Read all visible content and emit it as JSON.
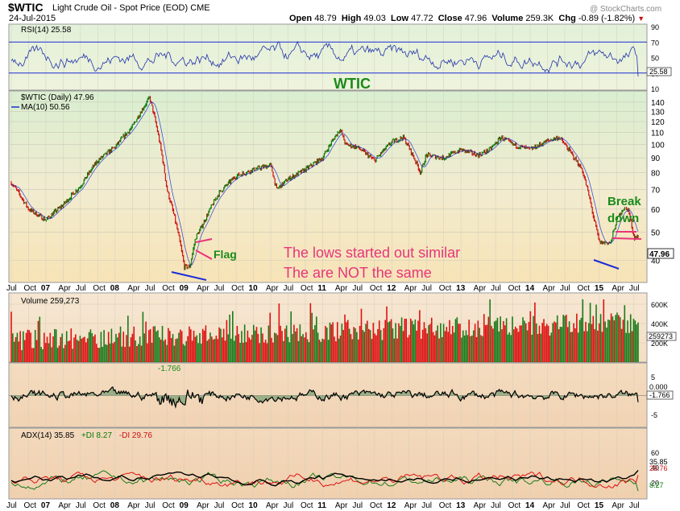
{
  "header": {
    "symbol": "$WTIC",
    "name": "Light Crude Oil - Spot Price (EOD)",
    "exchange": "CME",
    "date": "24-Jul-2015",
    "watermark": "@ StockCharts.com",
    "ohlc": {
      "open_label": "Open",
      "open": "48.79",
      "high_label": "High",
      "high": "49.03",
      "low_label": "Low",
      "low": "47.72",
      "close_label": "Close",
      "close": "47.96",
      "volume_label": "Volume",
      "volume": "259.3K",
      "chg_label": "Chg",
      "chg": "-0.89 (-1.82%)"
    }
  },
  "colors": {
    "up": "#0a7a0a",
    "down": "#cc1111",
    "rsi": "#2233aa",
    "annotation_pink": "#e8357a",
    "annotation_green": "#1a8a1a",
    "trendline": "#1a2bd6",
    "ma": "#1a2bd6"
  },
  "chart_data": [
    {
      "type": "line",
      "panel": "rsi",
      "legend": "RSI(14) 25.58",
      "current_value_label": "25.58",
      "y_ticks": [
        "90",
        "70",
        "50",
        "30",
        "10"
      ],
      "y_range": [
        10,
        90
      ],
      "guide_lines": [
        70,
        30
      ],
      "overlay_label": "WTIC"
    },
    {
      "type": "line",
      "panel": "price",
      "legend_price": "$WTIC (Daily) 47.96",
      "legend_ma": "MA(10) 50.56",
      "current_value_label": "47.96",
      "y_ticks": [
        "140",
        "130",
        "120",
        "110",
        "100",
        "90",
        "80",
        "70",
        "60",
        "50",
        "40"
      ],
      "y_scale": "log",
      "y_range": [
        34,
        150
      ],
      "x": [
        "2006-07",
        "2006-10",
        "2007-01",
        "2007-04",
        "2007-07",
        "2007-10",
        "2008-01",
        "2008-04",
        "2008-07",
        "2008-10",
        "2009-01",
        "2009-02",
        "2009-03",
        "2009-04",
        "2009-07",
        "2009-10",
        "2010-01",
        "2010-04",
        "2010-05",
        "2010-07",
        "2010-10",
        "2011-01",
        "2011-04",
        "2011-05",
        "2011-07",
        "2011-10",
        "2012-01",
        "2012-03",
        "2012-06",
        "2012-07",
        "2012-10",
        "2013-01",
        "2013-04",
        "2013-06",
        "2013-08",
        "2013-10",
        "2014-01",
        "2014-04",
        "2014-06",
        "2014-07",
        "2014-10",
        "2014-12",
        "2015-01",
        "2015-03",
        "2015-04",
        "2015-05",
        "2015-06",
        "2015-07"
      ],
      "y": [
        74,
        60,
        55,
        62,
        72,
        88,
        98,
        115,
        145,
        70,
        38,
        38,
        48,
        52,
        68,
        78,
        82,
        85,
        70,
        76,
        82,
        90,
        113,
        100,
        98,
        88,
        102,
        106,
        80,
        92,
        90,
        96,
        92,
        96,
        106,
        100,
        96,
        103,
        106,
        100,
        82,
        56,
        46,
        46,
        55,
        60,
        60,
        48
      ],
      "x_ticks": [
        "Jul",
        "Oct",
        "07",
        "Apr",
        "Jul",
        "Oct",
        "08",
        "Apr",
        "Jul",
        "Oct",
        "09",
        "Apr",
        "Jul",
        "Oct",
        "10",
        "Apr",
        "Jul",
        "Oct",
        "11",
        "Apr",
        "Jul",
        "Oct",
        "12",
        "Apr",
        "Jul",
        "Oct",
        "13",
        "Apr",
        "Jul",
        "Oct",
        "14",
        "Apr",
        "Jul",
        "Oct",
        "15",
        "Apr",
        "Jul"
      ],
      "annotations": [
        "Flag",
        "Break",
        "down",
        "The lows started out similar",
        "The are NOT the same"
      ]
    },
    {
      "type": "bar",
      "panel": "volume",
      "legend": "Volume 259,273",
      "current_value_label": "259273",
      "y_ticks": [
        "600K",
        "400K",
        "200K"
      ],
      "y_range": [
        0,
        700000
      ]
    },
    {
      "type": "line",
      "panel": "oscillator",
      "legend": "-1.766",
      "current_value_labels": [
        "0.000",
        "-1.766"
      ],
      "y_ticks": [
        "5",
        "-5"
      ],
      "y_range": [
        -8,
        8
      ]
    },
    {
      "type": "line",
      "panel": "adx",
      "legend_adx": "ADX(14) 35.85",
      "legend_plus_di": "+DI 8.27",
      "legend_minus_di": "-DI 29.76",
      "current_value_labels": [
        "35.85",
        "29.76",
        "8.27"
      ],
      "y_ticks": [
        "60",
        "40",
        "20"
      ],
      "y_range": [
        0,
        75
      ],
      "x_ticks": [
        "Jul",
        "Oct",
        "07",
        "Apr",
        "Jul",
        "Oct",
        "08",
        "Apr",
        "Jul",
        "Oct",
        "09",
        "Apr",
        "Jul",
        "Oct",
        "10",
        "Apr",
        "Jul",
        "Oct",
        "11",
        "Apr",
        "Jul",
        "Oct",
        "12",
        "Apr",
        "Jul",
        "Oct",
        "13",
        "Apr",
        "Jul",
        "Oct",
        "14",
        "Apr",
        "Jul",
        "Oct",
        "15",
        "Apr",
        "Jul"
      ]
    }
  ]
}
